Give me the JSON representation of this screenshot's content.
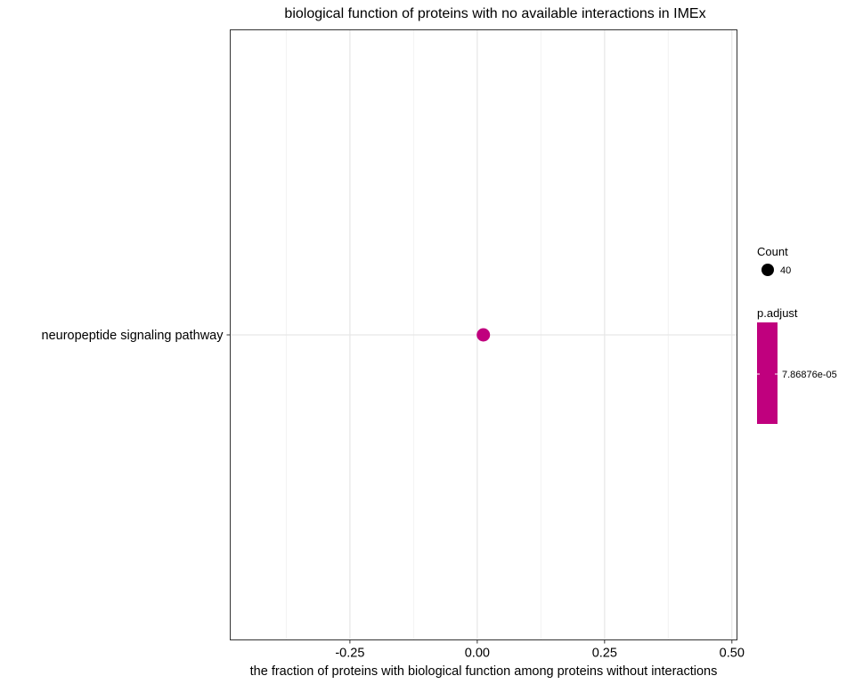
{
  "chart_data": {
    "type": "scatter",
    "title": "biological function of proteins with no available interactions in IMEx",
    "xlabel": "the fraction of proteins with biological function among proteins without interactions",
    "ylabel": "",
    "xlim": [
      -0.485,
      0.51
    ],
    "x_ticks": [
      {
        "value": -0.25,
        "label": "-0.25"
      },
      {
        "value": 0.0,
        "label": "0.00"
      },
      {
        "value": 0.25,
        "label": "0.25"
      },
      {
        "value": 0.5,
        "label": "0.50"
      }
    ],
    "x_minor_ticks": [
      -0.375,
      -0.125,
      0.125,
      0.375
    ],
    "grid": true,
    "categories": [
      "neuropeptide signaling pathway"
    ],
    "points": [
      {
        "category": "neuropeptide signaling pathway",
        "x": 0.012,
        "count": 40,
        "p_adjust": 7.86876e-05,
        "color": "#C0007E"
      }
    ],
    "legend": {
      "placement": "right",
      "count_title": "Count",
      "count_items": [
        {
          "label": "40",
          "value": 40
        }
      ],
      "padjust_title": "p.adjust",
      "padjust_label": "7.86876e-05",
      "padjust_color": "#C0007E"
    }
  }
}
